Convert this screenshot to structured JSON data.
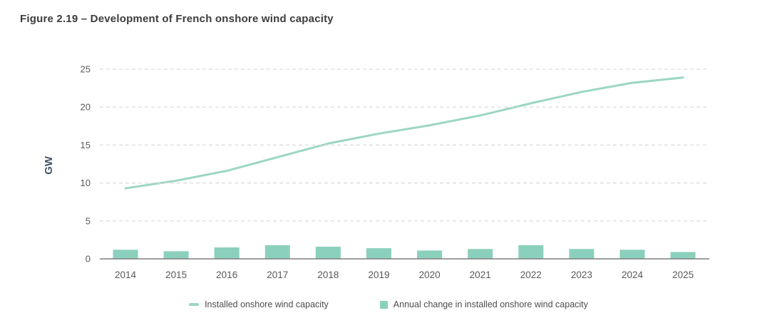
{
  "figure": {
    "title": "Figure 2.19 – Development of French onshore wind capacity"
  },
  "chart_data": {
    "type": "line+bar combo",
    "categories": [
      "2014",
      "2015",
      "2016",
      "2017",
      "2018",
      "2019",
      "2020",
      "2021",
      "2022",
      "2023",
      "2024",
      "2025"
    ],
    "series": [
      {
        "name": "Installed onshore wind capacity",
        "type": "line",
        "color": "#9cd6c4",
        "values": [
          9.3,
          10.3,
          11.6,
          13.4,
          15.2,
          16.5,
          17.6,
          18.9,
          20.5,
          22.0,
          23.2,
          23.9
        ]
      },
      {
        "name": "Annual change in installed onshore wind capacity",
        "type": "bar",
        "color": "#8bd0bc",
        "values": [
          1.2,
          1.0,
          1.5,
          1.8,
          1.6,
          1.4,
          1.1,
          1.3,
          1.8,
          1.3,
          1.2,
          0.9
        ]
      }
    ],
    "xlabel": "",
    "ylabel": "GW",
    "ylim": [
      0,
      25
    ],
    "yticks": [
      0,
      5,
      10,
      15,
      20,
      25
    ],
    "grid": "horizontal dashed gridlines, solid baseline at 0",
    "legend_position": "bottom-center"
  },
  "colors": {
    "title_text": "#3c3c3c",
    "tick_text": "#595959",
    "ylabel_text": "#44546a",
    "legend_text": "#4d4d4d",
    "gridline": "#d9d9d9",
    "axis_line": "#7f7f7f",
    "background": "#ffffff"
  }
}
